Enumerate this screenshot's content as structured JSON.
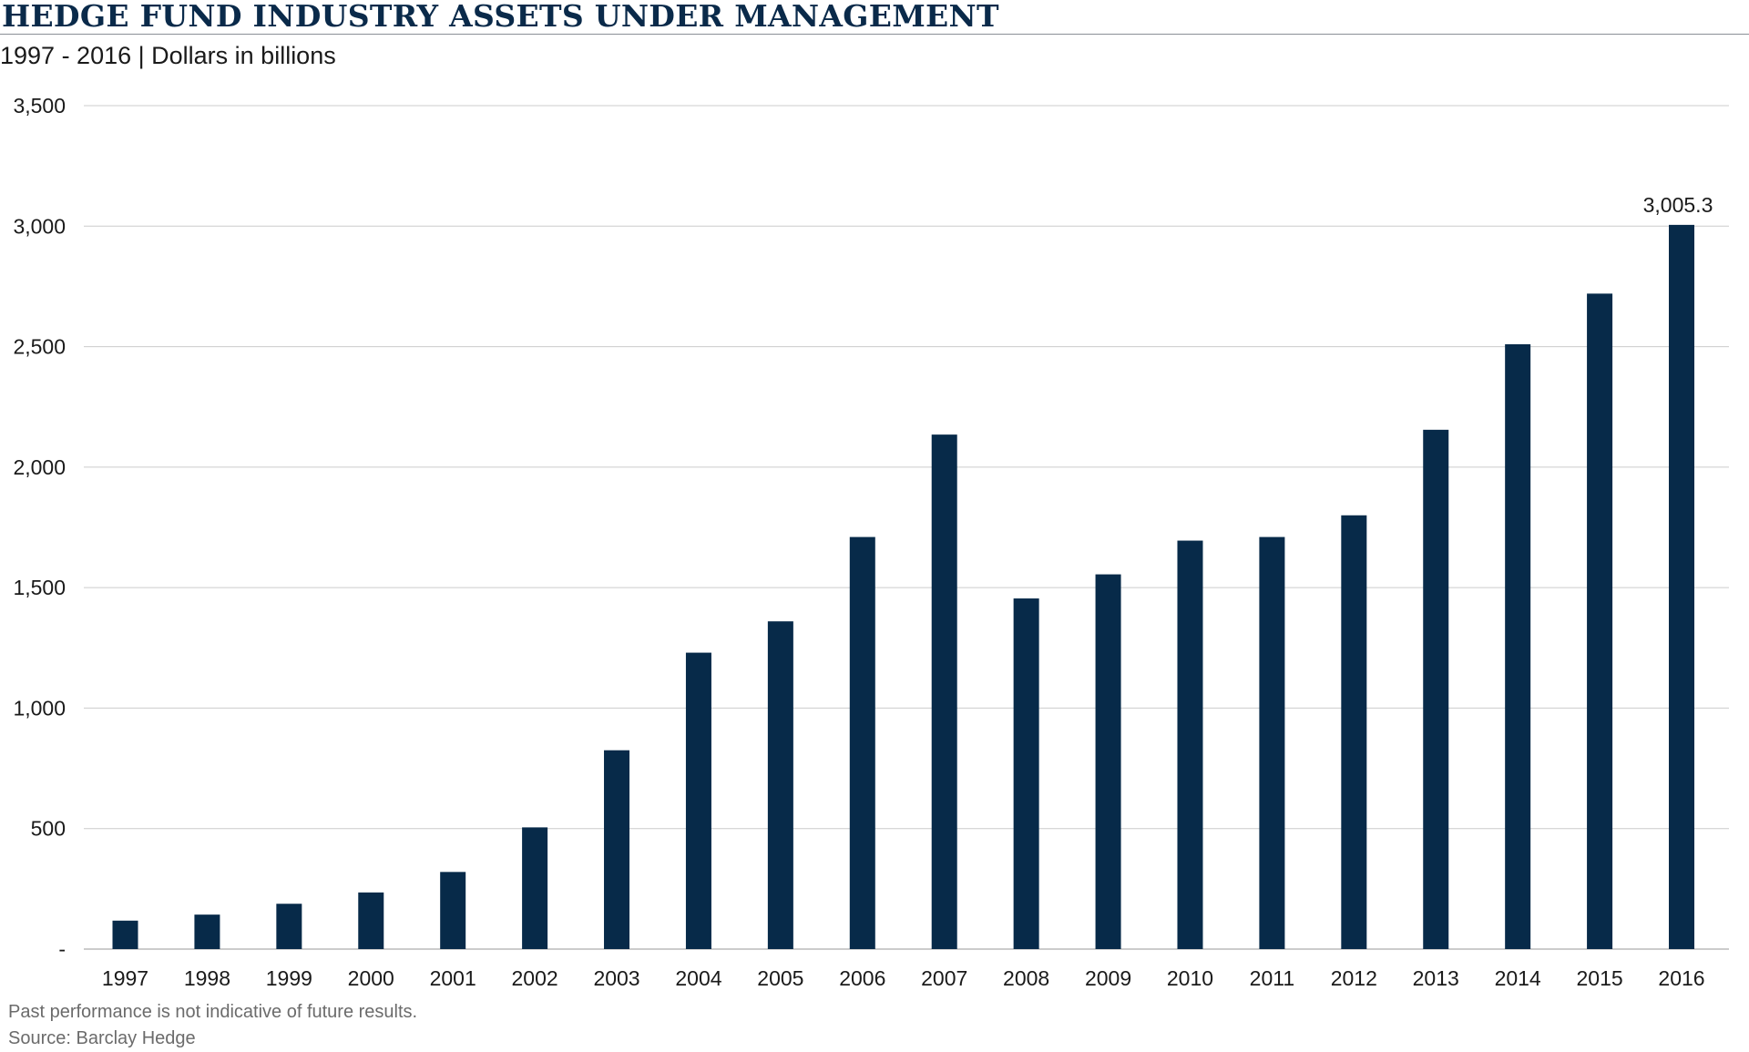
{
  "header": {
    "title": "HEDGE FUND INDUSTRY ASSETS UNDER MANAGEMENT",
    "subtitle": "1997 - 2016 | Dollars in billions"
  },
  "footer": {
    "disclaimer": "Past performance is not indicative of future results.",
    "source": "Source: Barclay Hedge"
  },
  "colors": {
    "bar": "#072a49",
    "grid": "#cccccc",
    "title": "#0a2a4a"
  },
  "chart_data": {
    "type": "bar",
    "title": "HEDGE FUND INDUSTRY ASSETS UNDER MANAGEMENT",
    "subtitle": "1997 - 2016 | Dollars in billions",
    "categories": [
      "1997",
      "1998",
      "1999",
      "2000",
      "2001",
      "2002",
      "2003",
      "2004",
      "2005",
      "2006",
      "2007",
      "2008",
      "2009",
      "2010",
      "2011",
      "2012",
      "2013",
      "2014",
      "2015",
      "2016"
    ],
    "values": [
      118,
      143,
      188,
      235,
      320,
      505,
      825,
      1230,
      1360,
      1710,
      2135,
      1455,
      1555,
      1695,
      1710,
      1800,
      2155,
      2510,
      2720,
      3005.3
    ],
    "ylim": [
      0,
      3500
    ],
    "yticks": [
      0,
      500,
      1000,
      1500,
      2000,
      2500,
      3000,
      3500
    ],
    "ytick_labels": [
      "-",
      "500",
      "1,000",
      "1,500",
      "2,000",
      "2,500",
      "3,000",
      "3,500"
    ],
    "data_labels": [
      {
        "category": "2016",
        "text": "3,005.3"
      }
    ],
    "grid": true,
    "legend": "none"
  }
}
